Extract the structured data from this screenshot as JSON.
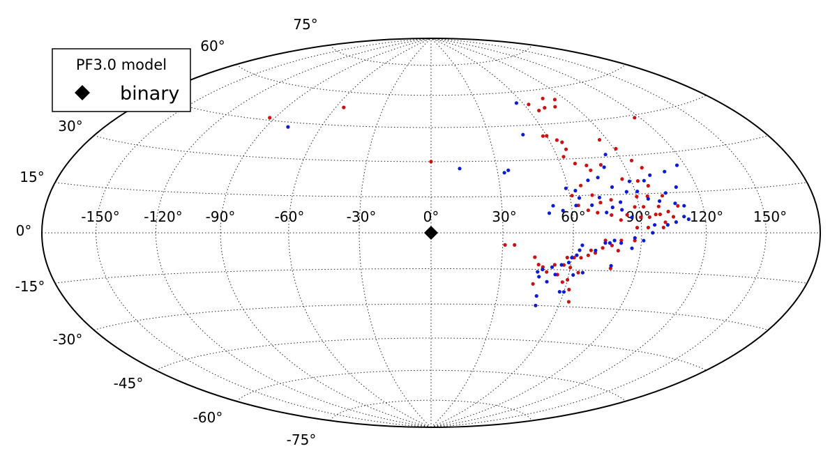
{
  "chart_data": {
    "type": "scatter",
    "projection": "hammer-aitoff",
    "grid": true,
    "legend": {
      "placement": "top-left",
      "title": "PF3.0 model",
      "entries": [
        {
          "label": "binary",
          "marker": "diamond",
          "color": "#000000"
        }
      ]
    },
    "longitude_ticks": [
      "-150°",
      "-120°",
      "-90°",
      "-60°",
      "-30°",
      "0°",
      "30°",
      "60°",
      "90°",
      "120°",
      "150°"
    ],
    "latitude_ticks": [
      "75°",
      "60°",
      "30°",
      "15°",
      "0°",
      "-15°",
      "-30°",
      "-45°",
      "-60°",
      "-75°"
    ],
    "binary": {
      "lon": 0,
      "lat": 0,
      "color": "#000000"
    },
    "colors": {
      "red": "#cc1111",
      "blue": "#0b1bd6"
    },
    "series": [
      {
        "color": "red",
        "points": [
          [
            -93,
            46
          ],
          [
            -55,
            53
          ],
          [
            0,
            30
          ],
          [
            117,
            44
          ],
          [
            63,
            54
          ],
          [
            66,
            51
          ],
          [
            71,
            52
          ],
          [
            76,
            56
          ],
          [
            78,
            52
          ],
          [
            83,
            55
          ],
          [
            58,
            40
          ],
          [
            60,
            40
          ],
          [
            64,
            38
          ],
          [
            66,
            37
          ],
          [
            66,
            34
          ],
          [
            63,
            31
          ],
          [
            67,
            28
          ],
          [
            72,
            27
          ],
          [
            73,
            25
          ],
          [
            79,
            27
          ],
          [
            86,
            37
          ],
          [
            91,
            33
          ],
          [
            95,
            28
          ],
          [
            98,
            25
          ],
          [
            86,
            21
          ],
          [
            93,
            20
          ],
          [
            97,
            18
          ],
          [
            95,
            14
          ],
          [
            90,
            14
          ],
          [
            88,
            10
          ],
          [
            92,
            10
          ],
          [
            99,
            10
          ],
          [
            102,
            14
          ],
          [
            97,
            7
          ],
          [
            94,
            6
          ],
          [
            90,
            6
          ],
          [
            84,
            7
          ],
          [
            81,
            5
          ],
          [
            77,
            7
          ],
          [
            71,
            8
          ],
          [
            67,
            9
          ],
          [
            63,
            11
          ],
          [
            61,
            15
          ],
          [
            66,
            19
          ],
          [
            70,
            15
          ],
          [
            78,
            13
          ],
          [
            73,
            12
          ],
          [
            108,
            10
          ],
          [
            105,
            6
          ],
          [
            103,
            8
          ],
          [
            88,
            2
          ],
          [
            93,
            2
          ],
          [
            100,
            2
          ],
          [
            101,
            4
          ],
          [
            99,
            7
          ],
          [
            87,
            -3
          ],
          [
            81,
            -3
          ],
          [
            74,
            -3
          ],
          [
            77,
            -5
          ],
          [
            80,
            -7
          ],
          [
            73,
            -6
          ],
          [
            68,
            -7
          ],
          [
            70,
            -8
          ],
          [
            67,
            -9
          ],
          [
            61,
            -10
          ],
          [
            64,
            -10
          ],
          [
            58,
            -10
          ],
          [
            57,
            -13
          ],
          [
            53,
            -13
          ],
          [
            60,
            -14
          ],
          [
            64,
            -16
          ],
          [
            55,
            -17
          ],
          [
            60,
            -19
          ],
          [
            58,
            -20
          ],
          [
            62,
            -23
          ],
          [
            64,
            -28
          ],
          [
            31,
            -5
          ],
          [
            35,
            -5
          ],
          [
            44,
            -10
          ],
          [
            46,
            -13
          ],
          [
            48,
            -14
          ],
          [
            50,
            -16
          ],
          [
            45,
            -21
          ],
          [
            78,
            -14
          ]
        ]
      },
      {
        "color": "blue",
        "points": [
          [
            -78,
            43
          ],
          [
            13,
            27
          ],
          [
            33,
            25
          ],
          [
            35,
            26
          ],
          [
            48,
            41
          ],
          [
            56,
            55
          ],
          [
            84,
            31
          ],
          [
            80,
            26
          ],
          [
            70,
            21
          ],
          [
            75,
            22
          ],
          [
            80,
            18
          ],
          [
            89,
            20
          ],
          [
            96,
            20
          ],
          [
            100,
            22
          ],
          [
            108,
            23
          ],
          [
            110,
            17
          ],
          [
            116,
            25
          ],
          [
            59,
            18
          ],
          [
            63,
            17
          ],
          [
            64,
            14
          ],
          [
            73,
            14
          ],
          [
            78,
            10
          ],
          [
            82,
            12
          ],
          [
            86,
            16
          ],
          [
            91,
            16
          ],
          [
            95,
            13
          ],
          [
            100,
            12
          ],
          [
            104,
            15
          ],
          [
            107,
            11
          ],
          [
            111,
            10
          ],
          [
            110,
            6
          ],
          [
            112,
            5
          ],
          [
            106,
            4
          ],
          [
            102,
            3
          ],
          [
            96,
            3
          ],
          [
            86,
            6
          ],
          [
            82,
            9
          ],
          [
            75,
            8
          ],
          [
            69,
            11
          ],
          [
            62,
            11
          ],
          [
            56,
            9
          ],
          [
            50,
            8
          ],
          [
            52,
            11
          ],
          [
            95,
            0
          ],
          [
            91,
            -3
          ],
          [
            87,
            -2
          ],
          [
            86,
            -6
          ],
          [
            81,
            -4
          ],
          [
            78,
            -3
          ],
          [
            76,
            -4
          ],
          [
            74,
            -4
          ],
          [
            70,
            -7
          ],
          [
            64,
            -5
          ],
          [
            63,
            -7
          ],
          [
            62,
            -9
          ],
          [
            60,
            -10
          ],
          [
            59,
            -12
          ],
          [
            56,
            -13
          ],
          [
            52,
            -14
          ],
          [
            48,
            -15
          ],
          [
            46,
            -16
          ],
          [
            47,
            -18
          ],
          [
            54,
            -17
          ],
          [
            51,
            -20
          ],
          [
            62,
            -17
          ],
          [
            66,
            -16
          ],
          [
            60,
            -24
          ],
          [
            58,
            -24
          ],
          [
            48,
            -26
          ],
          [
            49,
            -30
          ],
          [
            78,
            -13
          ]
        ]
      }
    ]
  }
}
